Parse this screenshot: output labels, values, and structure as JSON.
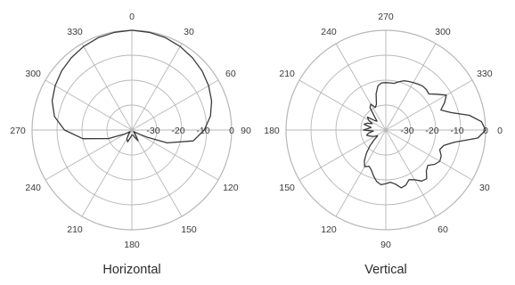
{
  "chart_data": [
    {
      "type": "polar-line",
      "caption": "Horizontal",
      "angle_labels": [
        "0",
        "30",
        "60",
        "90",
        "120",
        "150",
        "180",
        "210",
        "240",
        "270",
        "300",
        "330"
      ],
      "angle_at_top": 0,
      "angle_direction": "clockwise",
      "radial_labels": [
        "0",
        "-10",
        "-20",
        "-30"
      ],
      "rlim": [
        -40,
        0
      ],
      "grid": true,
      "series": [
        {
          "color": "#3a3a3a",
          "points": [
            [
              0,
              0
            ],
            [
              10,
              -0.2
            ],
            [
              20,
              -0.6
            ],
            [
              30,
              -1.3
            ],
            [
              40,
              -2.2
            ],
            [
              50,
              -3.2
            ],
            [
              60,
              -4.5
            ],
            [
              70,
              -6
            ],
            [
              80,
              -8
            ],
            [
              90,
              -11
            ],
            [
              100,
              -15
            ],
            [
              110,
              -25
            ],
            [
              115,
              -33
            ],
            [
              120,
              -37
            ],
            [
              130,
              -39
            ],
            [
              140,
              -38
            ],
            [
              150,
              -35
            ],
            [
              160,
              -37
            ],
            [
              170,
              -38
            ],
            [
              180,
              -38
            ],
            [
              190,
              -37
            ],
            [
              200,
              -35
            ],
            [
              210,
              -36
            ],
            [
              220,
              -38
            ],
            [
              230,
              -39
            ],
            [
              240,
              -37
            ],
            [
              250,
              -30
            ],
            [
              260,
              -20
            ],
            [
              270,
              -13
            ],
            [
              280,
              -8.5
            ],
            [
              290,
              -6
            ],
            [
              300,
              -4.5
            ],
            [
              310,
              -3.2
            ],
            [
              320,
              -2.2
            ],
            [
              330,
              -1.3
            ],
            [
              340,
              -0.6
            ],
            [
              350,
              -0.2
            ],
            [
              360,
              0
            ]
          ]
        }
      ]
    },
    {
      "type": "polar-line",
      "caption": "Vertical",
      "angle_labels": [
        "270",
        "300",
        "330",
        "0",
        "30",
        "60",
        "90",
        "120",
        "150",
        "180",
        "210",
        "240"
      ],
      "angle_at_top": 270,
      "angle_direction": "clockwise",
      "radial_labels": [
        "0",
        "-10",
        "-20",
        "-30"
      ],
      "rlim": [
        -40,
        0
      ],
      "grid": true,
      "series": [
        {
          "color": "#3a3a3a",
          "points": [
            [
              0,
              0
            ],
            [
              5,
              -3
            ],
            [
              10,
              -12
            ],
            [
              15,
              -16
            ],
            [
              20,
              -17
            ],
            [
              25,
              -15.5
            ],
            [
              30,
              -15
            ],
            [
              35,
              -16
            ],
            [
              40,
              -18
            ],
            [
              45,
              -17
            ],
            [
              50,
              -14.5
            ],
            [
              55,
              -15
            ],
            [
              60,
              -17
            ],
            [
              65,
              -18
            ],
            [
              70,
              -16.5
            ],
            [
              75,
              -16
            ],
            [
              80,
              -18
            ],
            [
              85,
              -19
            ],
            [
              90,
              -18.5
            ],
            [
              95,
              -18
            ],
            [
              100,
              -19
            ],
            [
              105,
              -21
            ],
            [
              110,
              -23
            ],
            [
              115,
              -24
            ],
            [
              120,
              -23
            ],
            [
              125,
              -25
            ],
            [
              130,
              -28
            ],
            [
              135,
              -31
            ],
            [
              140,
              -34
            ],
            [
              145,
              -36
            ],
            [
              150,
              -35
            ],
            [
              155,
              -34
            ],
            [
              160,
              -33
            ],
            [
              165,
              -32
            ],
            [
              170,
              -33
            ],
            [
              175,
              -35
            ],
            [
              180,
              -31
            ],
            [
              185,
              -33
            ],
            [
              190,
              -34
            ],
            [
              195,
              -31
            ],
            [
              200,
              -32
            ],
            [
              205,
              -34
            ],
            [
              210,
              -32
            ],
            [
              215,
              -31
            ],
            [
              220,
              -34
            ],
            [
              225,
              -35
            ],
            [
              230,
              -33
            ],
            [
              235,
              -29
            ],
            [
              240,
              -28
            ],
            [
              245,
              -30
            ],
            [
              250,
              -29
            ],
            [
              255,
              -25
            ],
            [
              260,
              -22
            ],
            [
              265,
              -21
            ],
            [
              270,
              -21
            ],
            [
              275,
              -21
            ],
            [
              280,
              -21
            ],
            [
              285,
              -20
            ],
            [
              290,
              -19
            ],
            [
              295,
              -18.5
            ],
            [
              300,
              -18
            ],
            [
              305,
              -17.5
            ],
            [
              310,
              -17
            ],
            [
              315,
              -17
            ],
            [
              320,
              -17.5
            ],
            [
              325,
              -15
            ],
            [
              330,
              -12
            ],
            [
              335,
              -14
            ],
            [
              340,
              -16.5
            ],
            [
              345,
              -13
            ],
            [
              350,
              -6
            ],
            [
              355,
              -1.5
            ],
            [
              360,
              0
            ]
          ]
        }
      ]
    }
  ]
}
